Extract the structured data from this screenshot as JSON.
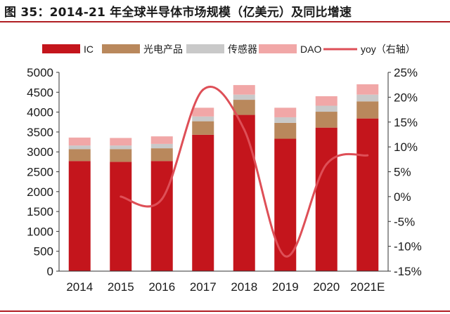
{
  "figure_title": "图 35：2014-21 年全球半导体市场规模（亿美元）及同比增速",
  "colors": {
    "ic": "#c4151c",
    "optoelectronics": "#b9885c",
    "sensors": "#c9c9c9",
    "dao": "#f1a7a7",
    "yoy": "#de4f57",
    "rule": "#b01e23"
  },
  "chart_data": {
    "type": "bar",
    "stacked": true,
    "categories": [
      "2014",
      "2015",
      "2016",
      "2017",
      "2018",
      "2019",
      "2020",
      "2021E"
    ],
    "series": [
      {
        "name": "IC",
        "key": "ic",
        "values": [
          2770,
          2750,
          2770,
          3430,
          3930,
          3330,
          3610,
          3840
        ]
      },
      {
        "name": "光电产品",
        "key": "optoelectronics",
        "values": [
          300,
          320,
          320,
          340,
          380,
          400,
          400,
          430
        ]
      },
      {
        "name": "传感器",
        "key": "sensors",
        "values": [
          90,
          90,
          110,
          120,
          130,
          140,
          150,
          170
        ]
      },
      {
        "name": "DAO",
        "key": "dao",
        "values": [
          200,
          190,
          190,
          220,
          240,
          240,
          240,
          260
        ]
      }
    ],
    "line_series": {
      "name": "yoy（右轴）",
      "key": "yoy",
      "x": [
        "2015",
        "2016",
        "2017",
        "2018",
        "2019",
        "2020",
        "2021E"
      ],
      "values": [
        0.0,
        -0.5,
        21.5,
        13.5,
        -12.0,
        6.5,
        8.3
      ]
    },
    "y_left": {
      "min": 0,
      "max": 5000,
      "step": 500,
      "tick_labels": [
        "0",
        "500",
        "1000",
        "1500",
        "2000",
        "2500",
        "3000",
        "3500",
        "4000",
        "4500",
        "5000"
      ]
    },
    "y_right": {
      "min": -15,
      "max": 25,
      "step": 5,
      "tick_labels": [
        "-15%",
        "-10%",
        "-5%",
        "0%",
        "5%",
        "10%",
        "15%",
        "20%",
        "25%"
      ]
    },
    "legend_position": "top",
    "grid": false
  }
}
